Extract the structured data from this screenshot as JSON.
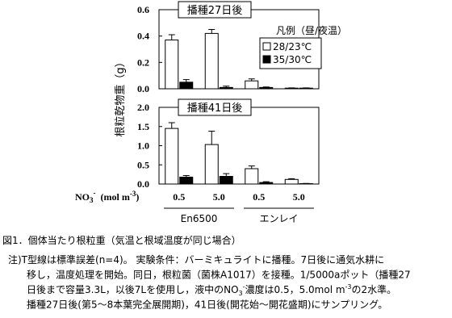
{
  "chart_data": [
    {
      "type": "bar",
      "title": "播種27日後",
      "legend_title": "凡例（昼/夜温）",
      "series": [
        {
          "name": "28/23℃",
          "color": "#ffffff",
          "values": [
            0.37,
            0.42,
            0.06,
            0.005
          ],
          "errors": [
            0.04,
            0.03,
            0.015,
            0.002
          ]
        },
        {
          "name": "35/30℃",
          "color": "#000000",
          "values": [
            0.05,
            0.01,
            0.01,
            0.005
          ],
          "errors": [
            0.02,
            0.01,
            0.004,
            0.002
          ]
        }
      ],
      "ylim": [
        0,
        0.6
      ],
      "yticks": [
        {
          "value": 0,
          "label": "0.0"
        },
        0.2,
        0.4,
        0.6
      ]
    },
    {
      "type": "bar",
      "title": "播種41日後",
      "series": [
        {
          "name": "28/23℃",
          "color": "#ffffff",
          "values": [
            1.45,
            1.03,
            0.4,
            0.12
          ],
          "errors": [
            0.15,
            0.35,
            0.07,
            0.02
          ]
        },
        {
          "name": "35/30℃",
          "color": "#000000",
          "values": [
            0.18,
            0.2,
            0.04,
            0.01
          ],
          "errors": [
            0.04,
            0.07,
            0.02,
            0.005
          ]
        }
      ],
      "ylim": [
        0,
        2
      ],
      "yticks": [
        {
          "value": 0,
          "label": "0.0"
        },
        0.5,
        {
          "value": 1,
          "label": "1.0"
        },
        1.5,
        {
          "value": 2,
          "label": "2.0"
        }
      ],
      "categories": [
        "0.5",
        "5.0",
        "0.5",
        "5.0"
      ],
      "groups": [
        "En6500",
        "エンレイ"
      ],
      "xlabel": {
        "base": "NO",
        "sub": "3",
        "sup": "-",
        "unit": "(mol m",
        "unit_sup": "-3",
        "end": ")"
      },
      "ylabel": "根粒乾物重（g）"
    }
  ],
  "caption": "図1．個体当たり根粒重（気温と根域温度が同じ場合）",
  "notes": [
    [
      {
        "text": "注)T型線は標準誤差(n=4)。 実験条件：バーミキュライトに播種。7日後に通気水耕に"
      }
    ],
    [
      {
        "text": "移し，温度処理を開始。同日，根粒菌（菌株A1017）を接種。1/5000aポット（播種27"
      }
    ],
    [
      {
        "text": "日後まで容量3.3L，以後7Lを使用し，液中のNO"
      },
      {
        "text": "3",
        "pos": "sub"
      },
      {
        "text": "-",
        "pos": "sup"
      },
      {
        "text": "濃度は0.5，5.0mol m"
      },
      {
        "text": "-3",
        "pos": "sup"
      },
      {
        "text": "の2水準。"
      }
    ],
    [
      {
        "text": "播種27日後(第5～8本葉完全展開期)，41日後(開花始～開花盛期)にサンプリング。"
      }
    ]
  ]
}
